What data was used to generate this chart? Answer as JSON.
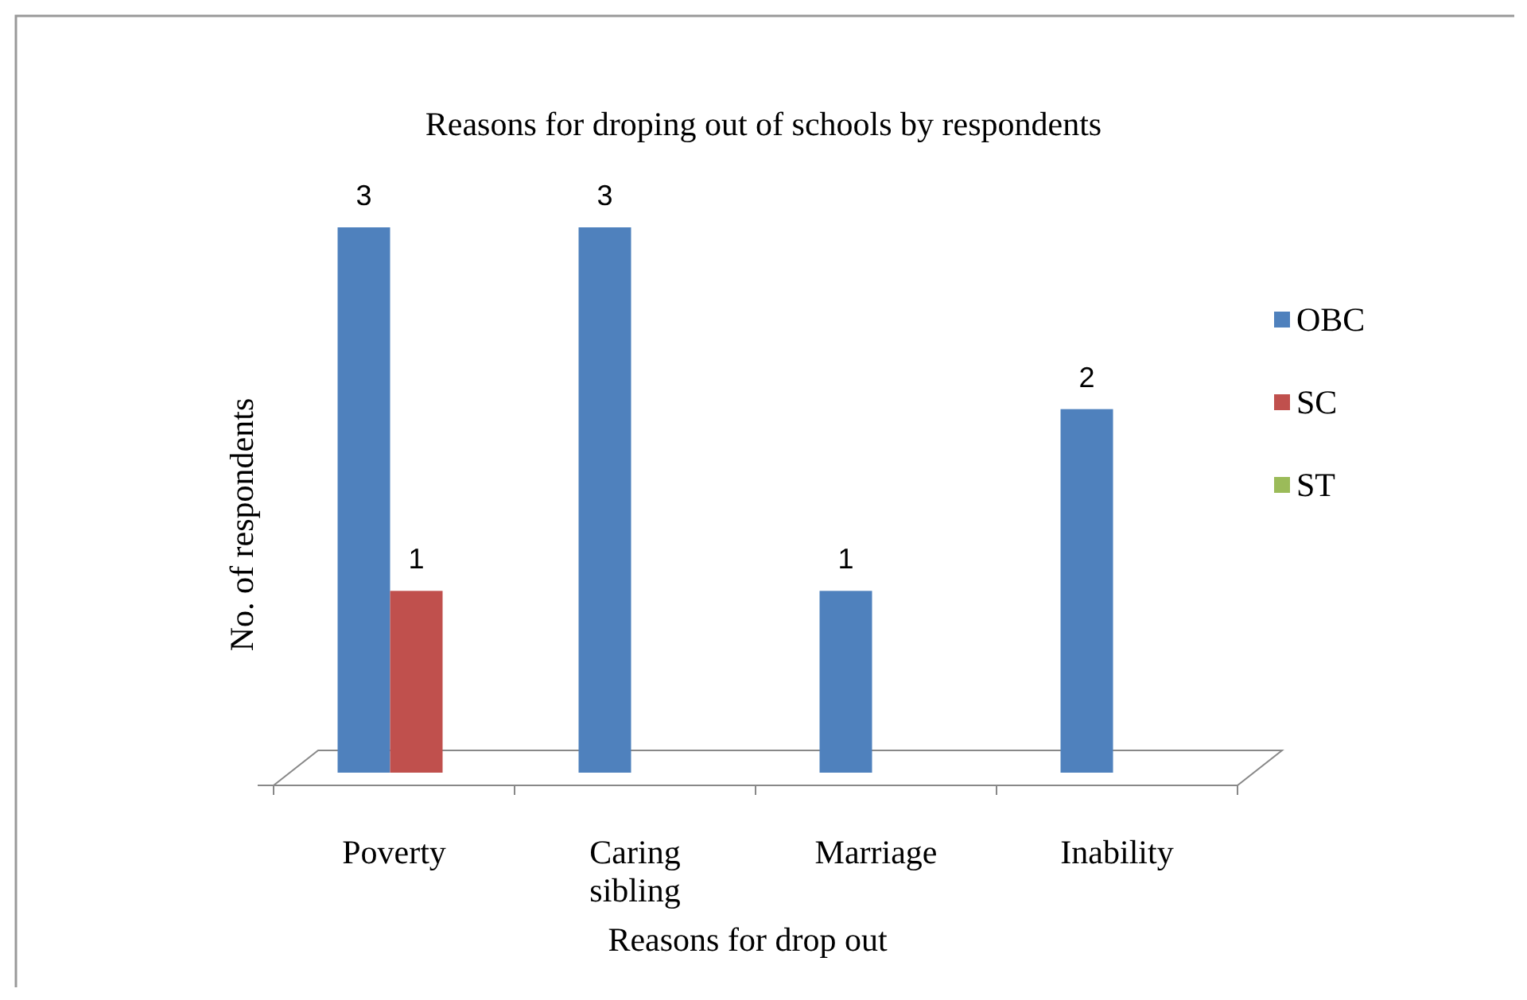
{
  "chart_data": {
    "type": "bar",
    "title": "Reasons for droping out of schools by respondents",
    "xlabel": "Reasons for drop out",
    "ylabel": "No. of respondents",
    "categories": [
      "Poverty",
      "Caring sibling",
      "Marriage",
      "Inability"
    ],
    "series": [
      {
        "name": "OBC",
        "color": "#4f81bd",
        "values": [
          3,
          3,
          1,
          2
        ],
        "value_labels": [
          "3",
          "3",
          "1",
          "2"
        ]
      },
      {
        "name": "SC",
        "color": "#c0504d",
        "values": [
          1,
          null,
          null,
          null
        ],
        "value_labels": [
          "1",
          null,
          null,
          null
        ]
      },
      {
        "name": "ST",
        "color": "#9bbb59",
        "values": [
          null,
          null,
          null,
          null
        ],
        "value_labels": [
          null,
          null,
          null,
          null
        ]
      }
    ],
    "legend": "right"
  }
}
